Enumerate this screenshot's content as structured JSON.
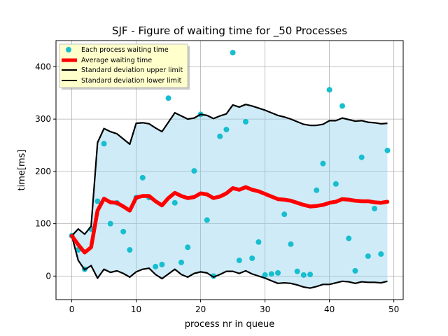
{
  "chart_data": {
    "type": "scatter",
    "title": "SJF - Figure of waiting time for _50 Processes",
    "xlabel": "process nr in queue",
    "ylabel": "time[ms]",
    "xlim": [
      -2.45,
      51.45
    ],
    "ylim": [
      -45,
      450
    ],
    "xticks": [
      0,
      10,
      20,
      30,
      40,
      50
    ],
    "yticks": [
      0,
      100,
      200,
      300,
      400
    ],
    "grid": true,
    "legend_position": "top-left",
    "legend": [
      {
        "label": "Each process waiting time",
        "kind": "marker",
        "color": "#17becf"
      },
      {
        "label": "Average waiting time",
        "kind": "line",
        "color": "#ff0000"
      },
      {
        "label": "Standard deviation upper limit",
        "kind": "line",
        "color": "#000000"
      },
      {
        "label": "Standard deviation lower limit",
        "kind": "line",
        "color": "#000000"
      }
    ],
    "colors": {
      "points": "#17becf",
      "average": "#ff0000",
      "std_lines": "#000000",
      "band_fill": "#87ceeb"
    },
    "x": [
      0,
      1,
      2,
      3,
      4,
      5,
      6,
      7,
      8,
      9,
      10,
      11,
      12,
      13,
      14,
      15,
      16,
      17,
      18,
      19,
      20,
      21,
      22,
      23,
      24,
      25,
      26,
      27,
      28,
      29,
      30,
      31,
      32,
      33,
      34,
      35,
      36,
      37,
      38,
      39,
      40,
      41,
      42,
      43,
      44,
      45,
      46,
      47,
      48,
      49
    ],
    "series": [
      {
        "name": "Each process waiting time",
        "values": [
          77,
          50,
          13,
          90,
          143,
          253,
          100,
          140,
          85,
          50,
          150,
          188,
          150,
          18,
          22,
          340,
          140,
          26,
          55,
          201,
          309,
          107,
          0,
          267,
          280,
          427,
          30,
          295,
          34,
          65,
          2,
          4,
          6,
          118,
          61,
          9,
          2,
          3,
          164,
          215,
          356,
          176,
          325,
          72,
          10,
          227,
          38,
          129,
          42,
          240
        ]
      },
      {
        "name": "Average waiting time",
        "values": [
          77,
          60,
          45,
          55,
          125,
          148,
          141,
          140,
          133,
          125,
          150,
          153,
          153,
          143,
          135,
          149,
          159,
          153,
          149,
          151,
          158,
          156,
          149,
          152,
          158,
          168,
          165,
          170,
          165,
          162,
          157,
          152,
          147,
          146,
          144,
          140,
          136,
          133,
          134,
          136,
          140,
          142,
          147,
          146,
          144,
          143,
          143,
          141,
          140,
          142
        ]
      },
      {
        "name": "Standard deviation upper limit",
        "values": [
          77,
          90,
          80,
          95,
          255,
          282,
          276,
          272,
          262,
          252,
          292,
          293,
          291,
          283,
          276,
          294,
          312,
          306,
          300,
          302,
          309,
          307,
          301,
          306,
          310,
          327,
          323,
          328,
          325,
          321,
          317,
          312,
          307,
          304,
          300,
          295,
          290,
          288,
          288,
          290,
          297,
          297,
          302,
          299,
          296,
          297,
          294,
          293,
          291,
          292
        ]
      },
      {
        "name": "Standard deviation lower limit",
        "values": [
          77,
          30,
          12,
          20,
          -4,
          13,
          7,
          10,
          5,
          -2,
          8,
          13,
          15,
          3,
          -5,
          4,
          13,
          3,
          -2,
          5,
          8,
          6,
          -2,
          3,
          9,
          9,
          5,
          10,
          4,
          0,
          -4,
          -9,
          -14,
          -13,
          -14,
          -17,
          -21,
          -23,
          -20,
          -16,
          -16,
          -13,
          -10,
          -11,
          -14,
          -11,
          -12,
          -12,
          -13,
          -10
        ]
      }
    ]
  }
}
